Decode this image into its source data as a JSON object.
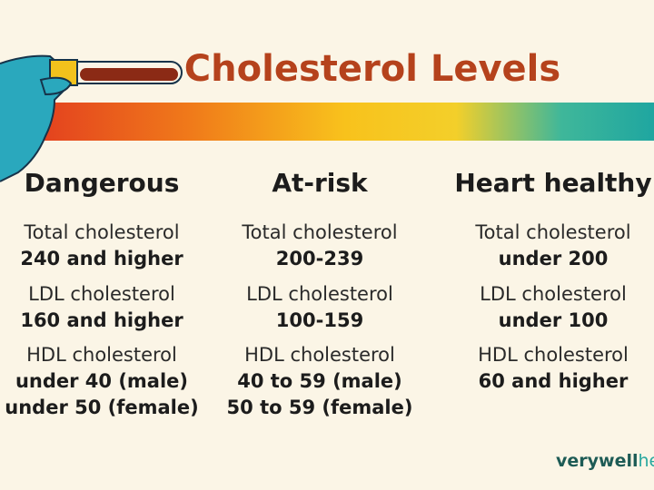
{
  "header": {
    "title": "Cholesterol Levels"
  },
  "columns": [
    {
      "heading": "Dangerous",
      "items": [
        {
          "label": "Total cholesterol",
          "values": [
            "240 and higher"
          ]
        },
        {
          "label": "LDL cholesterol",
          "values": [
            "160 and higher"
          ]
        },
        {
          "label": "HDL cholesterol",
          "values": [
            "under 40 (male)",
            "under 50 (female)"
          ]
        }
      ]
    },
    {
      "heading": "At-risk",
      "items": [
        {
          "label": "Total cholesterol",
          "values": [
            "200-239"
          ]
        },
        {
          "label": "LDL cholesterol",
          "values": [
            "100-159"
          ]
        },
        {
          "label": "HDL cholesterol",
          "values": [
            "40 to 59 (male)",
            "50 to 59 (female)"
          ]
        }
      ]
    },
    {
      "heading": "Heart healthy",
      "items": [
        {
          "label": "Total cholesterol",
          "values": [
            "under 200"
          ]
        },
        {
          "label": "LDL cholesterol",
          "values": [
            "under 100"
          ]
        },
        {
          "label": "HDL cholesterol",
          "values": [
            "60 and higher"
          ]
        }
      ]
    }
  ],
  "brand": {
    "first": "verywell",
    "second": "health"
  }
}
